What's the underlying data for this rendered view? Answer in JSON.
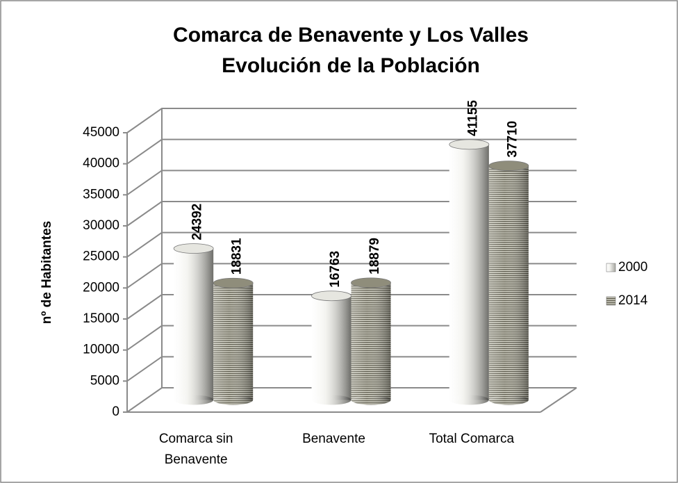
{
  "chart_data": {
    "type": "bar",
    "title": "Comarca de Benavente y Los Valles",
    "subtitle": "Evolución de la Población",
    "y_label": "nº de Habitantes",
    "categories": [
      [
        "Comarca sin",
        "Benavente"
      ],
      [
        "Benavente"
      ],
      [
        "Total Comarca"
      ]
    ],
    "series": [
      {
        "name": "2000",
        "color": "#e6e6e0",
        "values": [
          24392,
          16763,
          41155
        ]
      },
      {
        "name": "2014",
        "color": "#8f8d7b",
        "values": [
          18831,
          18879,
          37710
        ]
      }
    ],
    "ylim": [
      0,
      45000
    ],
    "yticks": [
      0,
      5000,
      10000,
      15000,
      20000,
      25000,
      30000,
      35000,
      40000,
      45000
    ],
    "grid": true,
    "legend": "right"
  }
}
